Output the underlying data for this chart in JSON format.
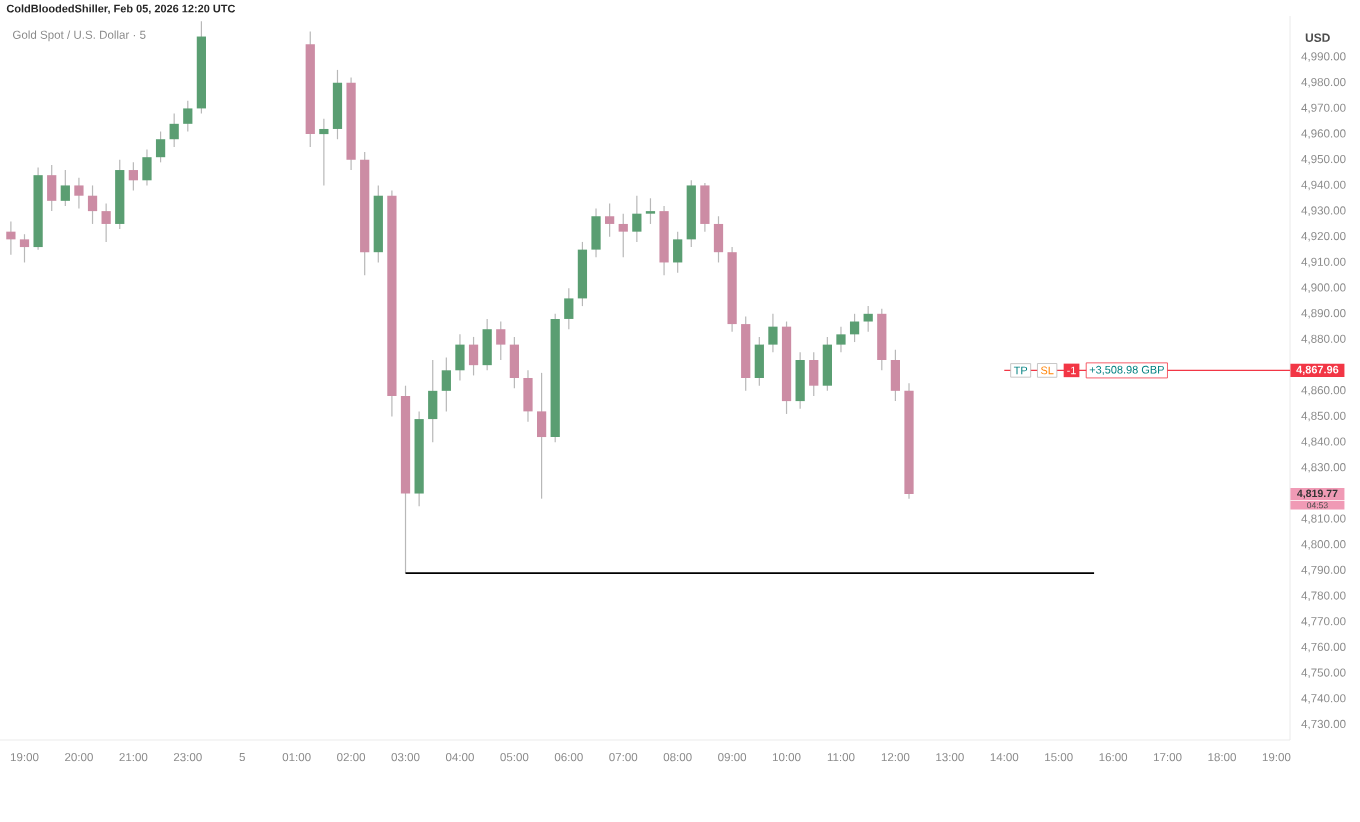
{
  "chart_data": {
    "type": "candlestick",
    "title": "Gold Spot / U.S. Dollar · 5",
    "subtitle": "ColdBloodedShiller, Feb 05, 2026 12:20 UTC",
    "ylabel": "USD",
    "categories": [
      null,
      "19:00",
      null,
      null,
      null,
      "20:00",
      null,
      null,
      null,
      "21:00",
      null,
      null,
      null,
      "23:00",
      null,
      null,
      null,
      "5",
      null,
      null,
      null,
      "01:00",
      null,
      null,
      null,
      "02:00",
      null,
      null,
      null,
      "03:00",
      null,
      null,
      null,
      "04:00",
      null,
      null,
      null,
      "05:00",
      null,
      null,
      null,
      "06:00",
      null,
      null,
      null,
      "07:00",
      null,
      null,
      null,
      "08:00",
      null,
      null,
      null,
      "09:00",
      null,
      null,
      null,
      "10:00",
      null,
      null,
      null,
      "11:00",
      null,
      null,
      null,
      "12:00",
      null,
      null,
      null,
      "13:00",
      null,
      null,
      null,
      "14:00",
      null,
      null,
      null,
      "15:00",
      null,
      null,
      null,
      "16:00",
      null,
      null,
      null,
      "17:00",
      null,
      null,
      null,
      "18:00",
      null,
      null,
      null,
      "19:00",
      null
    ],
    "ohlc": [
      [
        4922,
        4926,
        4913,
        4919
      ],
      [
        4919,
        4921,
        4910,
        4916
      ],
      [
        4916,
        4947,
        4915,
        4944
      ],
      [
        4944,
        4948,
        4930,
        4934
      ],
      [
        4934,
        4946,
        4932,
        4940
      ],
      [
        4940,
        4943,
        4931,
        4936
      ],
      [
        4936,
        4940,
        4925,
        4930
      ],
      [
        4930,
        4933,
        4918,
        4925
      ],
      [
        4925,
        4950,
        4923,
        4946
      ],
      [
        4946,
        4949,
        4938,
        4942
      ],
      [
        4942,
        4954,
        4940,
        4951
      ],
      [
        4951,
        4961,
        4949,
        4958
      ],
      [
        4958,
        4968,
        4955,
        4964
      ],
      [
        4964,
        4973,
        4961,
        4970
      ],
      [
        4970,
        5004,
        4968,
        4998
      ],
      null,
      null,
      null,
      null,
      null,
      null,
      null,
      [
        4995,
        5000,
        4955,
        4960
      ],
      [
        4960,
        4966,
        4940,
        4962
      ],
      [
        4962,
        4985,
        4958,
        4980
      ],
      [
        4980,
        4982,
        4946,
        4950
      ],
      [
        4950,
        4953,
        4905,
        4914
      ],
      [
        4914,
        4940,
        4910,
        4936
      ],
      [
        4936,
        4938,
        4850,
        4858
      ],
      [
        4858,
        4862,
        4789,
        4820
      ],
      [
        4820,
        4852,
        4815,
        4849
      ],
      [
        4849,
        4872,
        4840,
        4860
      ],
      [
        4860,
        4873,
        4852,
        4868
      ],
      [
        4868,
        4882,
        4864,
        4878
      ],
      [
        4878,
        4881,
        4866,
        4870
      ],
      [
        4870,
        4888,
        4868,
        4884
      ],
      [
        4884,
        4887,
        4872,
        4878
      ],
      [
        4878,
        4881,
        4861,
        4865
      ],
      [
        4865,
        4868,
        4848,
        4852
      ],
      [
        4852,
        4867,
        4818,
        4842
      ],
      [
        4842,
        4890,
        4840,
        4888
      ],
      [
        4888,
        4900,
        4884,
        4896
      ],
      [
        4896,
        4918,
        4893,
        4915
      ],
      [
        4915,
        4931,
        4912,
        4928
      ],
      [
        4928,
        4933,
        4920,
        4925
      ],
      [
        4925,
        4929,
        4912,
        4922
      ],
      [
        4922,
        4936,
        4918,
        4929
      ],
      [
        4929,
        4935,
        4925,
        4930
      ],
      [
        4930,
        4932,
        4905,
        4910
      ],
      [
        4910,
        4922,
        4906,
        4919
      ],
      [
        4919,
        4942,
        4916,
        4940
      ],
      [
        4940,
        4941,
        4922,
        4925
      ],
      [
        4925,
        4928,
        4910,
        4914
      ],
      [
        4914,
        4916,
        4883,
        4886
      ],
      [
        4886,
        4889,
        4860,
        4865
      ],
      [
        4865,
        4881,
        4862,
        4878
      ],
      [
        4878,
        4890,
        4875,
        4885
      ],
      [
        4885,
        4887,
        4851,
        4856
      ],
      [
        4856,
        4875,
        4853,
        4872
      ],
      [
        4872,
        4875,
        4858,
        4862
      ],
      [
        4862,
        4881,
        4860,
        4878
      ],
      [
        4878,
        4885,
        4875,
        4882
      ],
      [
        4882,
        4890,
        4879,
        4887
      ],
      [
        4887,
        4893,
        4883,
        4890
      ],
      [
        4890,
        4892,
        4868,
        4872
      ],
      [
        4872,
        4876,
        4856,
        4860
      ],
      [
        4860,
        4863,
        4818,
        4819.77
      ],
      null,
      null,
      null,
      null,
      null,
      null,
      null,
      null,
      null,
      null,
      null,
      null,
      null,
      null,
      null,
      null,
      null,
      null,
      null,
      null,
      null,
      null,
      null,
      null,
      null,
      null,
      null,
      null
    ],
    "ylim": [
      4724,
      5006
    ],
    "yticks": [
      {
        "value": 4730,
        "label": "4,730.00"
      },
      {
        "value": 4740,
        "label": "4,740.00"
      },
      {
        "value": 4750,
        "label": "4,750.00"
      },
      {
        "value": 4760,
        "label": "4,760.00"
      },
      {
        "value": 4770,
        "label": "4,770.00"
      },
      {
        "value": 4780,
        "label": "4,780.00"
      },
      {
        "value": 4790,
        "label": "4,790.00"
      },
      {
        "value": 4800,
        "label": "4,800.00"
      },
      {
        "value": 4810,
        "label": "4,810.00"
      },
      {
        "value": 4830,
        "label": "4,830.00"
      },
      {
        "value": 4840,
        "label": "4,840.00"
      },
      {
        "value": 4850,
        "label": "4,850.00"
      },
      {
        "value": 4860,
        "label": "4,860.00"
      },
      {
        "value": 4880,
        "label": "4,880.00"
      },
      {
        "value": 4890,
        "label": "4,890.00"
      },
      {
        "value": 4900,
        "label": "4,900.00"
      },
      {
        "value": 4910,
        "label": "4,910.00"
      },
      {
        "value": 4920,
        "label": "4,920.00"
      },
      {
        "value": 4930,
        "label": "4,930.00"
      },
      {
        "value": 4940,
        "label": "4,940.00"
      },
      {
        "value": 4950,
        "label": "4,950.00"
      },
      {
        "value": 4960,
        "label": "4,960.00"
      },
      {
        "value": 4970,
        "label": "4,970.00"
      },
      {
        "value": 4980,
        "label": "4,980.00"
      },
      {
        "value": 4990,
        "label": "4,990.00"
      }
    ],
    "ref_lines": [
      {
        "axis": "y",
        "value": 4867.96,
        "label": "+3,508.98 GBP",
        "color": "#f23645"
      },
      {
        "axis": "y",
        "value": 4789,
        "color": "#000000"
      }
    ],
    "annotations": [
      "4,819.77",
      "04:53",
      "4,867.96",
      "TP",
      "SL",
      "-1"
    ]
  }
}
